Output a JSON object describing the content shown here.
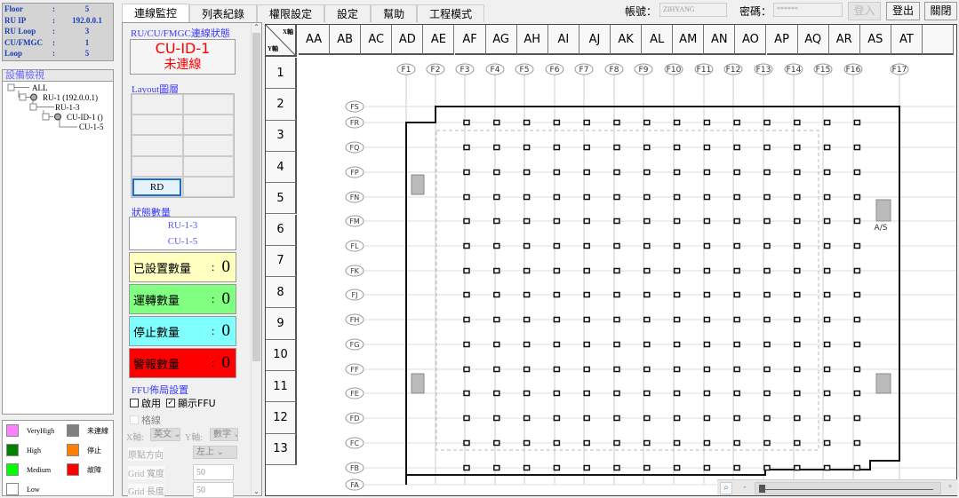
{
  "info": [
    {
      "k": "Floor",
      "v": "5"
    },
    {
      "k": "RU IP",
      "v": "192.0.0.1"
    },
    {
      "k": "RU Loop",
      "v": "3"
    },
    {
      "k": "CU/FMGC",
      "v": "1"
    },
    {
      "k": "Loop",
      "v": "5"
    }
  ],
  "info_colon": ":",
  "tree": {
    "title": "設備檢視",
    "nodes": [
      "ALL",
      "RU-1 (192.0.0.1)",
      "RU-1-3",
      "CU-ID-1 ()",
      "CU-1-5"
    ]
  },
  "legend": [
    {
      "label": "VeryHigh",
      "color": "#ff80ff"
    },
    {
      "label": "未連線",
      "color": "#808080"
    },
    {
      "label": "High",
      "color": "#008000"
    },
    {
      "label": "停止",
      "color": "#ff8000"
    },
    {
      "label": "Medium",
      "color": "#00ff00"
    },
    {
      "label": "故障",
      "color": "#ff0000"
    },
    {
      "label": "Low",
      "color": "#ffffff"
    }
  ],
  "tabs": [
    "連線監控",
    "列表紀錄",
    "權限設定",
    "設定",
    "幫助",
    "工程模式"
  ],
  "login": {
    "account_label": "帳號：",
    "account": "ZIHYANG",
    "password_label": "密碼：",
    "password": "******",
    "login": "登入",
    "logout": "登出",
    "close": "關閉"
  },
  "status": {
    "title": "RU/CU/FMGC連線狀態",
    "id": "CU-ID-1",
    "state": "未連線"
  },
  "layout": {
    "title": "Layout圖層",
    "rd": "RD"
  },
  "counts": {
    "title": "狀態數量",
    "ru": "RU-1-3",
    "cu": "CU-1-5",
    "colon": ":",
    "items": [
      {
        "label": "已設置數量",
        "value": "0",
        "color": "#ffffc0"
      },
      {
        "label": "運轉數量",
        "value": "0",
        "color": "#80ff80"
      },
      {
        "label": "停止數量",
        "value": "0",
        "color": "#80ffff"
      },
      {
        "label": "警報數量",
        "value": "0",
        "color": "#ff0000"
      }
    ]
  },
  "ffu": {
    "title": "FFU佈局設置",
    "enable": "啟用",
    "enable_checked": false,
    "show": "顯示FFU",
    "show_checked": true,
    "gridline": "格線",
    "x_axis_label": "X軸:",
    "x_axis": "英文",
    "y_axis_label": "Y軸:",
    "y_axis": "數字",
    "origin_label": "原點方向",
    "origin": "左上",
    "grid_w_label": "Grid 寬度",
    "grid_w": "50",
    "grid_h_label": "Grid 長度",
    "grid_h": "50"
  },
  "grid": {
    "corner_x": "X軸",
    "corner_y": "Y軸",
    "columns": [
      "AA",
      "AB",
      "AC",
      "AD",
      "AE",
      "AF",
      "AG",
      "AH",
      "AI",
      "AJ",
      "AK",
      "AL",
      "AM",
      "AN",
      "AO",
      "AP",
      "AQ",
      "AR",
      "AS",
      "AT",
      ""
    ],
    "rows": [
      "1",
      "2",
      "3",
      "4",
      "5",
      "6",
      "7",
      "8",
      "9",
      "10",
      "11",
      "12",
      "13"
    ]
  },
  "plan": {
    "col_labels": [
      "F1",
      "F2",
      "F3",
      "F4",
      "F5",
      "F6",
      "F7",
      "F8",
      "F9",
      "F10",
      "F11",
      "F12",
      "F13",
      "F14",
      "F15",
      "F16",
      "F17"
    ],
    "row_labels": [
      "FS",
      "FR",
      "FQ",
      "FP",
      "FN",
      "FM",
      "FL",
      "FK",
      "FJ",
      "FH",
      "FG",
      "FF",
      "FE",
      "FD",
      "FC",
      "FB",
      "FA"
    ],
    "equipment_label": "A/S"
  },
  "zoom": {
    "minus": "-",
    "plus": "+",
    "level": 0
  }
}
